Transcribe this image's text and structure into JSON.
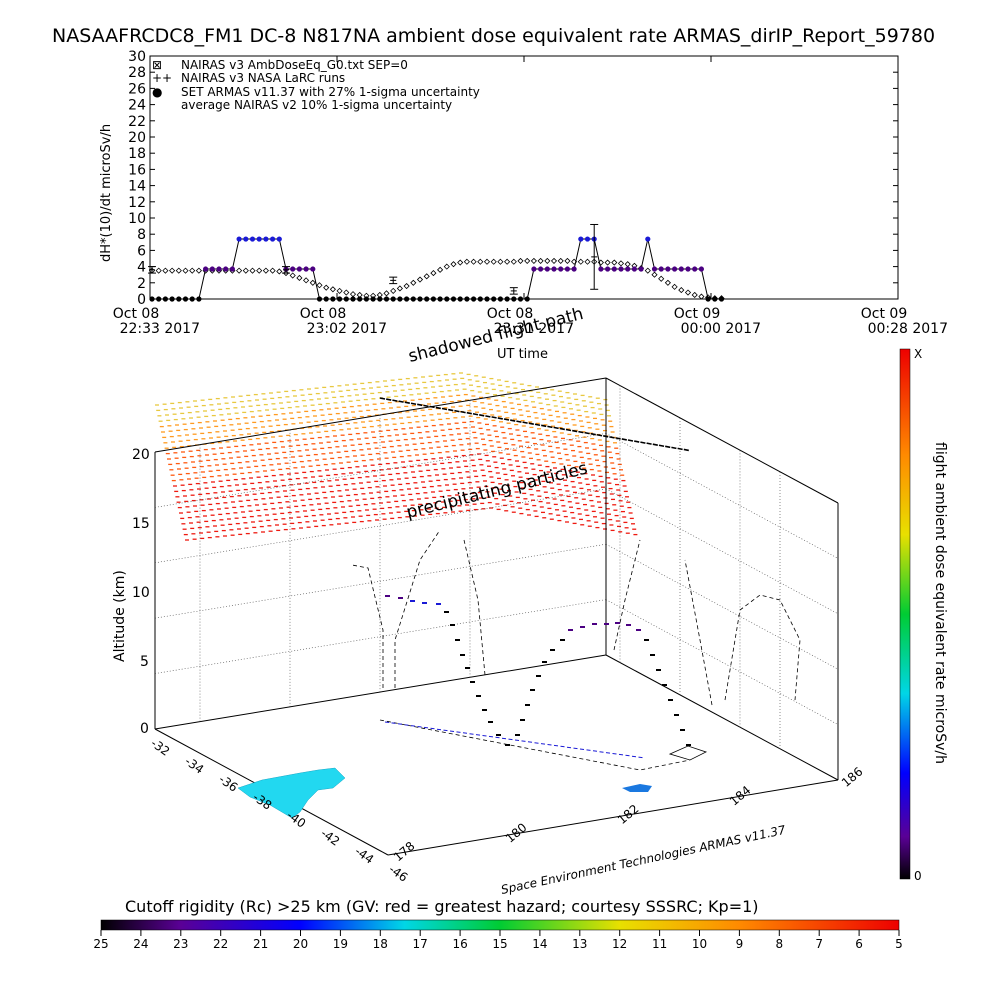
{
  "chart_data": [
    {
      "type": "scatter",
      "title": "NASAAFRCDC8_FM1 DC-8   N817NA ambient dose equivalent rate ARMAS_dirIP_Report_59780",
      "ylabel": "dH*(10)/dt microSv/h",
      "xlabel": "UT time",
      "ylim": [
        0,
        30
      ],
      "yticks": [
        "0",
        "2",
        "4",
        "6",
        "8",
        "10",
        "12",
        "14",
        "16",
        "18",
        "20",
        "22",
        "24",
        "26",
        "28",
        "30"
      ],
      "xticks": [
        {
          "date": "Oct 08",
          "time": "22:33 2017"
        },
        {
          "date": "Oct 08",
          "time": "23:02 2017"
        },
        {
          "date": "Oct 08",
          "time": "23:31 2017"
        },
        {
          "date": "Oct 09",
          "time": "00:00 2017"
        },
        {
          "date": "Oct 09",
          "time": "00:28 2017"
        }
      ],
      "legend": [
        {
          "symbol": "⊠",
          "label": "NAIRAS v3 AmbDoseEq_G0.txt SEP=0"
        },
        {
          "symbol": "++",
          "label": "NAIRAS v3 NASA LaRC runs"
        },
        {
          "symbol": "●",
          "label": "SET ARMAS v11.37 with 27% 1-sigma uncertainty"
        },
        {
          "symbol": "",
          "label": "average NAIRAS v2 10% 1-sigma uncertainty"
        }
      ],
      "series": [
        {
          "name": "NAIRAS v3 AmbDoseEq_G0.txt SEP=0",
          "x": [
            0,
            1,
            2,
            3,
            4,
            5,
            6,
            7,
            8,
            9,
            10,
            11,
            12,
            13,
            14,
            15,
            16,
            17,
            18,
            19,
            20,
            21,
            22,
            23,
            24,
            25,
            26,
            27,
            28,
            29,
            30,
            31,
            32,
            33,
            34,
            35,
            36,
            37,
            38,
            39,
            40,
            41,
            42,
            43,
            44,
            45,
            46,
            47,
            48,
            49,
            50,
            51,
            52,
            53,
            54,
            55,
            56,
            57,
            58,
            59,
            60,
            61,
            62,
            63,
            64,
            65,
            66,
            67,
            68,
            69,
            70,
            71,
            72,
            73,
            74,
            75,
            76,
            77,
            78,
            79,
            80,
            81,
            82,
            83,
            84,
            85
          ],
          "y": [
            3.5,
            3.5,
            3.5,
            3.5,
            3.5,
            3.5,
            3.5,
            3.5,
            3.5,
            3.5,
            3.5,
            3.5,
            3.5,
            3.5,
            3.5,
            3.5,
            3.5,
            3.5,
            3.5,
            3.4,
            3.2,
            2.9,
            2.6,
            2.3,
            2.0,
            1.7,
            1.4,
            1.2,
            1.0,
            0.8,
            0.6,
            0.5,
            0.4,
            0.4,
            0.5,
            0.7,
            1.0,
            1.3,
            1.6,
            2.0,
            2.4,
            2.8,
            3.2,
            3.6,
            4.0,
            4.3,
            4.5,
            4.6,
            4.6,
            4.6,
            4.6,
            4.6,
            4.6,
            4.6,
            4.6,
            4.7,
            4.7,
            4.7,
            4.7,
            4.7,
            4.7,
            4.7,
            4.7,
            4.6,
            4.6,
            4.6,
            4.6,
            4.5,
            4.5,
            4.5,
            4.4,
            4.3,
            4.1,
            3.8,
            3.5,
            3.0,
            2.5,
            2.0,
            1.5,
            1.1,
            0.8,
            0.5,
            0.3,
            0.2,
            0.1,
            0.1
          ]
        },
        {
          "name": "SET ARMAS v11.37 with 27% 1-sigma uncertainty",
          "x": [
            0,
            1,
            2,
            3,
            4,
            5,
            6,
            7,
            8,
            9,
            10,
            11,
            12,
            13,
            14,
            15,
            16,
            17,
            18,
            19,
            20,
            21,
            22,
            23,
            24,
            25,
            26,
            27,
            28,
            29,
            30,
            31,
            32,
            33,
            34,
            35,
            36,
            37,
            38,
            39,
            40,
            41,
            42,
            43,
            44,
            45,
            46,
            47,
            48,
            49,
            50,
            51,
            52,
            53,
            54,
            55,
            56,
            57,
            58,
            59,
            60,
            61,
            62,
            63,
            64,
            65,
            66,
            67,
            68,
            69,
            70,
            71,
            72,
            73,
            74,
            75,
            76,
            77,
            78,
            79,
            80,
            81,
            82,
            83,
            84,
            85
          ],
          "y": [
            0,
            0,
            0,
            0,
            0,
            0,
            0,
            0,
            3.7,
            3.7,
            3.7,
            3.7,
            3.7,
            7.4,
            7.4,
            7.4,
            7.4,
            7.4,
            7.4,
            7.4,
            3.7,
            3.7,
            3.7,
            3.7,
            3.7,
            0,
            0,
            0,
            0,
            0,
            0,
            0,
            0,
            0,
            0,
            0,
            0,
            0,
            0,
            0,
            0,
            0,
            0,
            0,
            0,
            0,
            0,
            0,
            0,
            0,
            0,
            0,
            0,
            0,
            0,
            0,
            0,
            3.7,
            3.7,
            3.7,
            3.7,
            3.7,
            3.7,
            3.7,
            7.4,
            7.4,
            7.4,
            3.7,
            3.7,
            3.7,
            3.7,
            3.7,
            3.7,
            3.7,
            7.4,
            3.7,
            3.7,
            3.7,
            3.7,
            3.7,
            3.7,
            3.7,
            3.7,
            0,
            0,
            0
          ]
        },
        {
          "name": "NAIRAS v3 NASA LaRC runs",
          "x": [
            0,
            20,
            36,
            54,
            66
          ],
          "y": [
            3.6,
            3.6,
            2.3,
            1.0,
            5.2
          ]
        }
      ]
    },
    {
      "type": "scatter",
      "zlabel": "Altitude (km)",
      "zticks": [
        "0",
        "5",
        "10",
        "15",
        "20"
      ],
      "lat_ticks": [
        "-32",
        "-34",
        "-36",
        "-38",
        "-40",
        "-42",
        "-44",
        "-46"
      ],
      "lon_ticks": [
        "178",
        "180",
        "182",
        "184",
        "186"
      ],
      "annotations": [
        "shadowed flight path",
        "precipitating particles"
      ],
      "credit": "Space Environment Technologies ARMAS v11.37"
    },
    {
      "type": "heatmap",
      "colorbar_label": "flight ambient dose equivalent rate microSv/h",
      "colorbar_ticks": [
        "X",
        "0"
      ]
    },
    {
      "type": "heatmap",
      "colorbar_label": "Cutoff rigidity (Rc) >25 km (GV: red = greatest hazard; courtesy SSSRC; Kp=1)",
      "colorbar_ticks": [
        "25",
        "24",
        "23",
        "22",
        "21",
        "20",
        "19",
        "18",
        "17",
        "16",
        "15",
        "14",
        "13",
        "12",
        "11",
        "10",
        "9",
        "8",
        "7",
        "6",
        "5"
      ]
    }
  ]
}
